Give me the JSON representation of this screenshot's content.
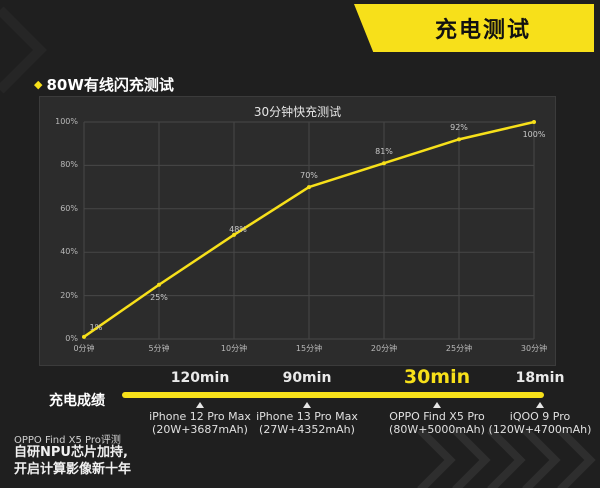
{
  "header": {
    "title": "充电测试"
  },
  "section": {
    "title": "80W有线闪充测试"
  },
  "chart_data": {
    "type": "line",
    "title": "30分钟快充测试",
    "xlabel": "",
    "ylabel": "",
    "x": [
      "0分钟",
      "5分钟",
      "10分钟",
      "15分钟",
      "20分钟",
      "25分钟",
      "30分钟"
    ],
    "xticks": [
      "0分钟",
      "5分钟",
      "10分钟",
      "15分钟",
      "20分钟",
      "25分钟",
      "30分钟"
    ],
    "yticks": [
      "0%",
      "20%",
      "40%",
      "60%",
      "80%",
      "100%"
    ],
    "ylim": [
      0,
      100
    ],
    "xlim": [
      0,
      30
    ],
    "series": [
      {
        "points": [
          [
            0,
            1
          ],
          [
            5,
            25
          ],
          [
            10,
            48
          ],
          [
            15,
            70
          ],
          [
            20,
            81
          ],
          [
            25,
            92
          ],
          [
            30,
            100
          ]
        ],
        "labels": [
          "1%",
          "25%",
          "48%",
          "70%",
          "81%",
          "92%",
          "100%"
        ]
      }
    ],
    "grid": true,
    "color": "#f7e01a"
  },
  "comparison": {
    "label": "充电成绩",
    "items": [
      {
        "time": "120min",
        "name": "iPhone 12 Pro Max",
        "spec": "(20W+3687mAh)",
        "highlight": false
      },
      {
        "time": "90min",
        "name": "iPhone 13 Pro Max",
        "spec": "(27W+4352mAh)",
        "highlight": false
      },
      {
        "time": "30min",
        "name": "OPPO Find X5 Pro",
        "spec": "(80W+5000mAh)",
        "highlight": true
      },
      {
        "time": "18min",
        "name": "iQOO 9 Pro",
        "spec": "(120W+4700mAh)",
        "highlight": false
      }
    ]
  },
  "footer": {
    "small": "OPPO Find X5 Pro评测",
    "line1": "自研NPU芯片加持,",
    "line2": "开启计算影像新十年"
  },
  "colors": {
    "accent": "#f7e01a",
    "background": "#1f1f1f",
    "panel": "#2c2c2c"
  }
}
